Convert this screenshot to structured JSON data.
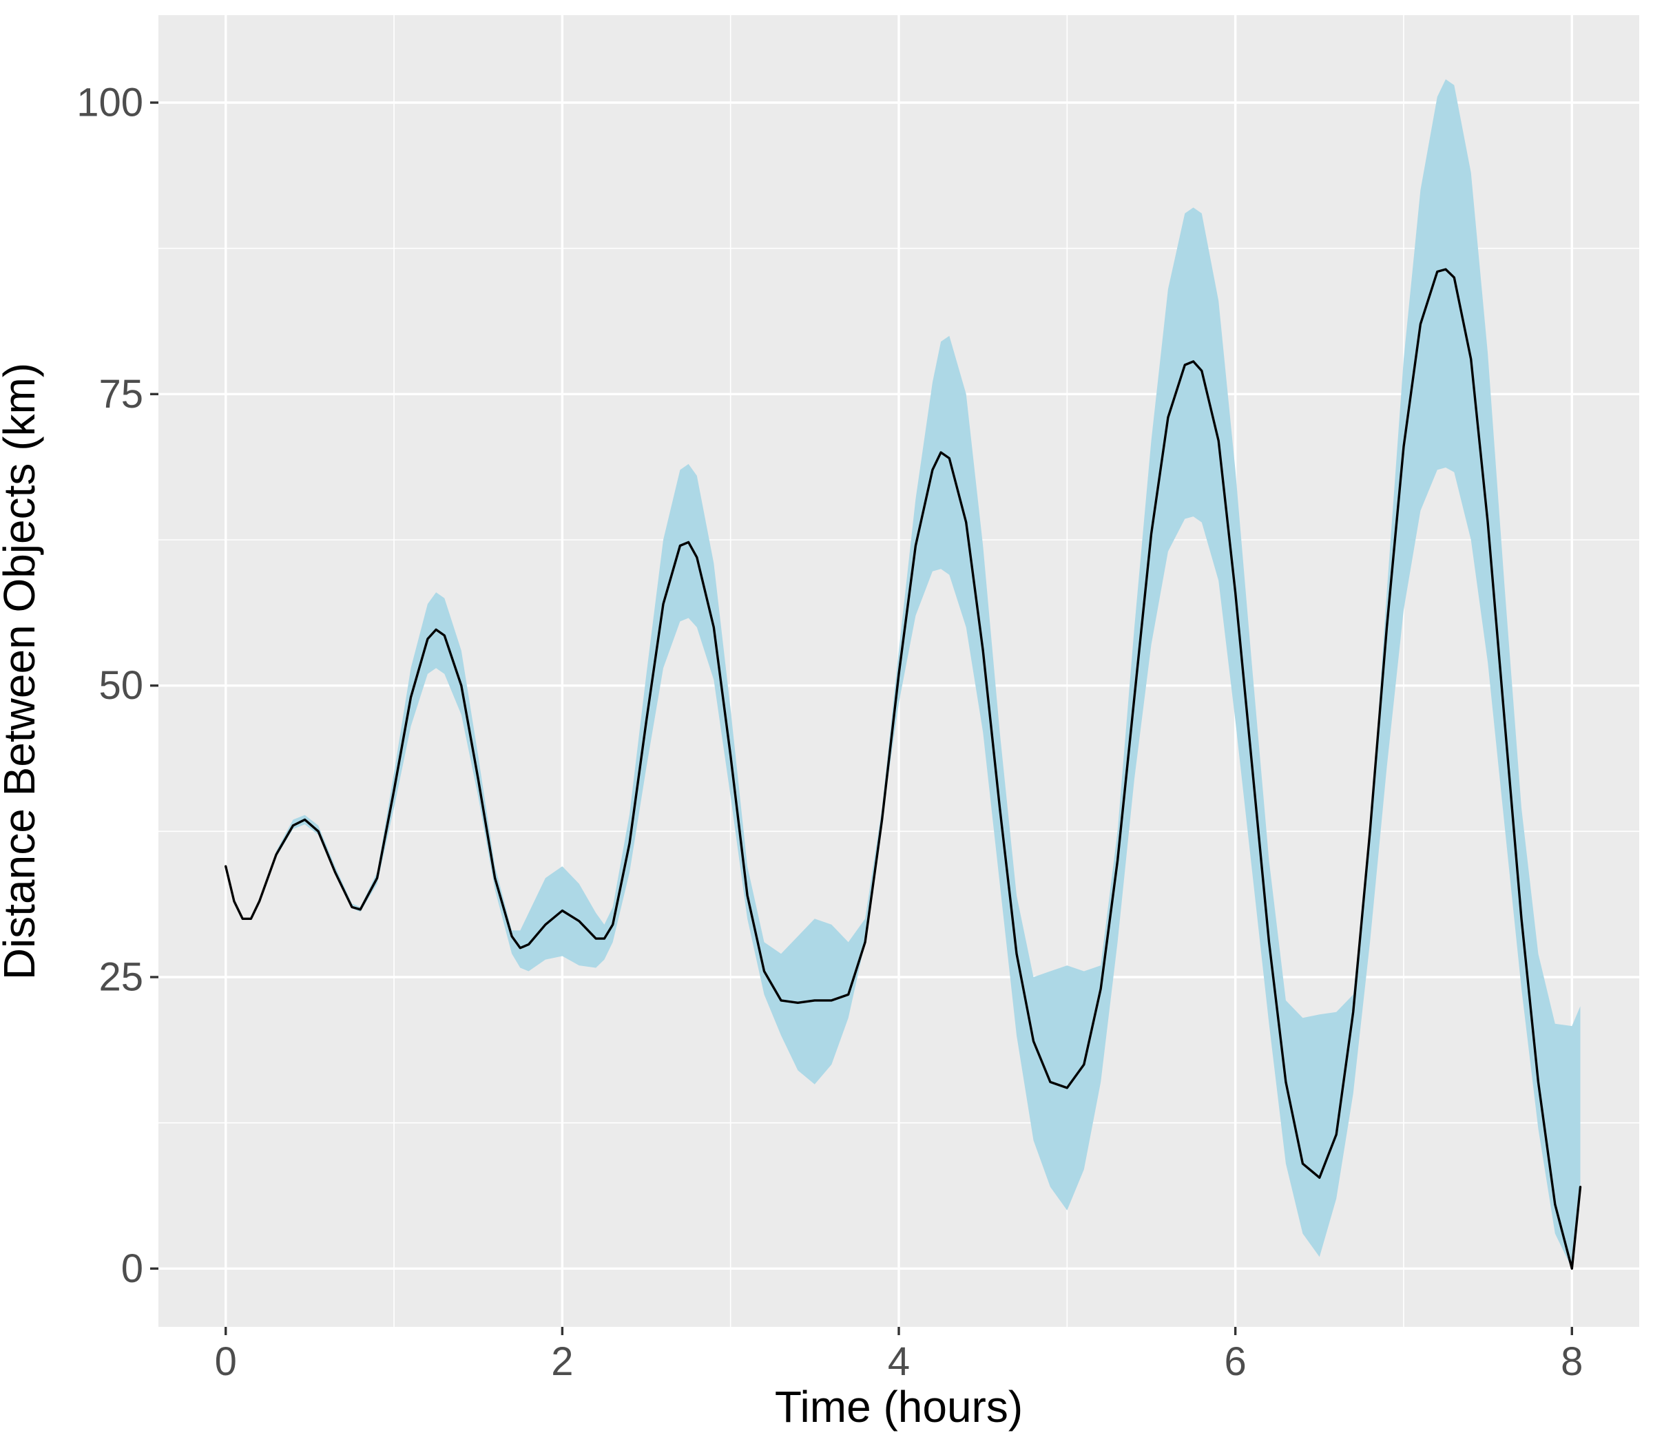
{
  "chart_data": {
    "type": "line",
    "title": "",
    "xlabel": "Time (hours)",
    "ylabel": "Distance Between Objects (km)",
    "xlim": [
      -0.4,
      8.4
    ],
    "ylim": [
      -5,
      107.5
    ],
    "x_ticks": [
      0,
      2,
      4,
      6,
      8
    ],
    "y_ticks": [
      0,
      25,
      50,
      75,
      100
    ],
    "x_tick_labels": [
      "0",
      "2",
      "4",
      "6",
      "8"
    ],
    "y_tick_labels": [
      "0",
      "25",
      "50",
      "75",
      "100"
    ],
    "grid": true,
    "legend": "none",
    "colors": {
      "panel_background": "#ebebeb",
      "grid": "#ffffff",
      "ribbon": "#add8e6",
      "line": "#000000"
    },
    "series": [
      {
        "kind": "line",
        "x": [
          0,
          0.05,
          0.1,
          0.15,
          0.2,
          0.3,
          0.4,
          0.47,
          0.55,
          0.65,
          0.75,
          0.8,
          0.9,
          1.0,
          1.1,
          1.2,
          1.25,
          1.3,
          1.4,
          1.5,
          1.6,
          1.7,
          1.75,
          1.8,
          1.9,
          2.0,
          2.1,
          2.2,
          2.25,
          2.3,
          2.4,
          2.5,
          2.6,
          2.7,
          2.75,
          2.8,
          2.9,
          3.0,
          3.1,
          3.2,
          3.3,
          3.4,
          3.5,
          3.6,
          3.7,
          3.8,
          3.9,
          4.0,
          4.1,
          4.2,
          4.25,
          4.3,
          4.4,
          4.5,
          4.6,
          4.7,
          4.8,
          4.9,
          5.0,
          5.1,
          5.2,
          5.3,
          5.4,
          5.5,
          5.6,
          5.7,
          5.75,
          5.8,
          5.9,
          6.0,
          6.1,
          6.2,
          6.3,
          6.4,
          6.5,
          6.6,
          6.7,
          6.8,
          6.9,
          7.0,
          7.1,
          7.2,
          7.25,
          7.3,
          7.4,
          7.5,
          7.6,
          7.7,
          7.8,
          7.9,
          8.0,
          8.05
        ],
        "y": [
          34.5,
          31.5,
          30.0,
          30.0,
          31.5,
          35.5,
          38.0,
          38.5,
          37.5,
          34.0,
          31.0,
          30.8,
          33.5,
          41.0,
          49.0,
          54.0,
          54.8,
          54.3,
          50.0,
          42.0,
          33.5,
          28.5,
          27.5,
          27.8,
          29.5,
          30.7,
          29.8,
          28.3,
          28.3,
          29.5,
          36.5,
          47.0,
          57.0,
          62.0,
          62.3,
          61.0,
          55.0,
          44.0,
          32.0,
          25.5,
          23.0,
          22.8,
          23.0,
          23.0,
          23.5,
          28.0,
          38.5,
          51.0,
          62.0,
          68.5,
          70.0,
          69.5,
          64.0,
          53.0,
          39.5,
          27.0,
          19.5,
          16.0,
          15.5,
          17.5,
          24.0,
          35.0,
          49.0,
          63.0,
          73.0,
          77.5,
          77.8,
          77.0,
          71.0,
          58.0,
          43.0,
          28.0,
          16.0,
          9.0,
          7.8,
          11.5,
          22.0,
          37.5,
          55.0,
          70.5,
          81.0,
          85.5,
          85.7,
          85.0,
          78.0,
          64.0,
          47.0,
          30.0,
          16.0,
          5.5,
          0.0,
          7.0
        ]
      },
      {
        "kind": "ribbon",
        "x": [
          0,
          0.05,
          0.1,
          0.15,
          0.2,
          0.3,
          0.4,
          0.47,
          0.55,
          0.65,
          0.75,
          0.8,
          0.9,
          1.0,
          1.1,
          1.2,
          1.25,
          1.3,
          1.4,
          1.5,
          1.6,
          1.7,
          1.75,
          1.8,
          1.9,
          2.0,
          2.1,
          2.2,
          2.25,
          2.3,
          2.4,
          2.5,
          2.6,
          2.7,
          2.75,
          2.8,
          2.9,
          3.0,
          3.1,
          3.2,
          3.3,
          3.4,
          3.5,
          3.6,
          3.7,
          3.8,
          3.9,
          4.0,
          4.1,
          4.2,
          4.25,
          4.3,
          4.4,
          4.5,
          4.6,
          4.7,
          4.8,
          4.9,
          5.0,
          5.1,
          5.2,
          5.3,
          5.4,
          5.5,
          5.6,
          5.7,
          5.75,
          5.8,
          5.9,
          6.0,
          6.1,
          6.2,
          6.3,
          6.4,
          6.5,
          6.6,
          6.7,
          6.8,
          6.9,
          7.0,
          7.1,
          7.2,
          7.25,
          7.3,
          7.4,
          7.5,
          7.6,
          7.7,
          7.8,
          7.9,
          8.0,
          8.05
        ],
        "ymin": [
          34.5,
          31.5,
          30.0,
          30.0,
          31.5,
          35.3,
          37.7,
          38.1,
          37.2,
          33.8,
          30.9,
          30.6,
          33.0,
          39.5,
          46.5,
          51.0,
          51.5,
          51.0,
          47.5,
          40.5,
          32.5,
          27.0,
          25.8,
          25.5,
          26.5,
          26.8,
          26.0,
          25.8,
          26.5,
          28.0,
          34.0,
          43.0,
          51.5,
          55.5,
          55.8,
          55.0,
          50.5,
          40.5,
          30.0,
          23.5,
          20.0,
          17.0,
          15.8,
          17.5,
          21.5,
          28.0,
          38.5,
          48.5,
          56.0,
          59.8,
          60.0,
          59.5,
          55.0,
          46.0,
          33.0,
          20.0,
          11.0,
          7.0,
          5.0,
          8.5,
          16.0,
          28.0,
          42.0,
          53.5,
          61.5,
          64.3,
          64.5,
          64.0,
          59.0,
          47.0,
          34.0,
          21.0,
          9.0,
          3.0,
          1.0,
          6.0,
          15.0,
          28.0,
          43.0,
          56.5,
          65.0,
          68.5,
          68.7,
          68.3,
          62.5,
          52.0,
          38.0,
          24.0,
          12.0,
          3.0,
          0.0,
          6.5
        ],
        "ymax": [
          34.5,
          31.5,
          30.0,
          30.0,
          31.5,
          35.8,
          38.5,
          38.9,
          38.0,
          34.5,
          31.3,
          31.0,
          34.0,
          42.5,
          51.5,
          57.0,
          58.0,
          57.5,
          53.0,
          44.0,
          34.5,
          29.0,
          29.0,
          30.5,
          33.5,
          34.5,
          33.0,
          30.5,
          29.5,
          31.0,
          39.0,
          51.0,
          62.5,
          68.5,
          69.0,
          68.0,
          60.5,
          48.0,
          34.5,
          28.0,
          27.0,
          28.5,
          30.0,
          29.5,
          28.0,
          30.0,
          39.5,
          53.0,
          66.0,
          76.0,
          79.5,
          80.0,
          75.0,
          62.0,
          46.0,
          32.0,
          25.0,
          25.5,
          26.0,
          25.5,
          26.0,
          37.5,
          55.0,
          71.0,
          84.0,
          90.5,
          91.0,
          90.5,
          83.0,
          68.5,
          51.5,
          35.0,
          23.0,
          21.5,
          21.8,
          22.0,
          23.5,
          37.0,
          58.0,
          78.0,
          92.5,
          100.5,
          102.0,
          101.5,
          94.0,
          78.5,
          58.5,
          39.5,
          27.0,
          21.0,
          20.8,
          22.5
        ]
      }
    ]
  }
}
